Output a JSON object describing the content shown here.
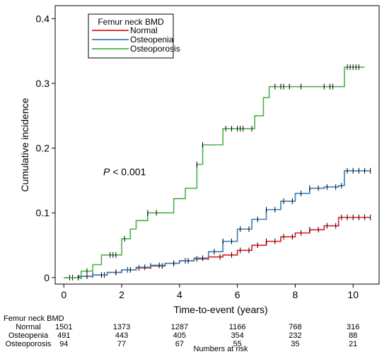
{
  "chart_data": {
    "type": "line",
    "subtype": "cumulative-incidence-step",
    "xlabel": "Time-to-event (years)",
    "ylabel": "Cumulative incidence",
    "xlim": [
      -0.3,
      10.9
    ],
    "ylim": [
      -0.01,
      0.42
    ],
    "xticks": [
      0,
      2,
      4,
      6,
      8,
      10
    ],
    "yticks": [
      0,
      0.1,
      0.2,
      0.3,
      0.4
    ],
    "ytick_labels": [
      "0",
      "0.1",
      "0.2",
      "0.3",
      "0.4"
    ],
    "grid": false,
    "legend": {
      "title": "Femur neck BMD",
      "placement": "top-left"
    },
    "annotation": {
      "p_italic": "P",
      "p_rest": " < 0.001",
      "x": 1.2,
      "y": 0.155
    },
    "series": [
      {
        "name": "Normal",
        "color": "#e41a1c",
        "points": [
          [
            0,
            0
          ],
          [
            0.5,
            0.002
          ],
          [
            1,
            0.004
          ],
          [
            1.5,
            0.008
          ],
          [
            2,
            0.012
          ],
          [
            2.5,
            0.015
          ],
          [
            3,
            0.018
          ],
          [
            3.5,
            0.022
          ],
          [
            4,
            0.026
          ],
          [
            4.5,
            0.029
          ],
          [
            5,
            0.032
          ],
          [
            5.5,
            0.035
          ],
          [
            6,
            0.042
          ],
          [
            6.5,
            0.05
          ],
          [
            7,
            0.056
          ],
          [
            7.5,
            0.063
          ],
          [
            8,
            0.069
          ],
          [
            8.5,
            0.074
          ],
          [
            9,
            0.08
          ],
          [
            9.5,
            0.093
          ],
          [
            10.6,
            0.093
          ]
        ],
        "censor_ticks": [
          0.2,
          0.6,
          1.0,
          1.4,
          1.8,
          2.2,
          2.6,
          3.0,
          3.4,
          3.8,
          4.2,
          4.6,
          5.0,
          5.4,
          5.8,
          6.1,
          6.4,
          6.7,
          7.0,
          7.3,
          7.6,
          7.9,
          8.2,
          8.5,
          8.8,
          9.1,
          9.4,
          9.6,
          9.8,
          10.0,
          10.2,
          10.4,
          10.6
        ]
      },
      {
        "name": "Osteopenia",
        "color": "#377eb8",
        "points": [
          [
            0,
            0
          ],
          [
            0.5,
            0.002
          ],
          [
            1,
            0.004
          ],
          [
            1.5,
            0.008
          ],
          [
            2,
            0.012
          ],
          [
            2.5,
            0.016
          ],
          [
            3,
            0.019
          ],
          [
            3.5,
            0.022
          ],
          [
            4,
            0.026
          ],
          [
            4.5,
            0.03
          ],
          [
            5,
            0.04
          ],
          [
            5.5,
            0.056
          ],
          [
            6,
            0.075
          ],
          [
            6.5,
            0.09
          ],
          [
            7,
            0.105
          ],
          [
            7.5,
            0.118
          ],
          [
            8,
            0.13
          ],
          [
            8.5,
            0.138
          ],
          [
            9,
            0.14
          ],
          [
            9.5,
            0.142
          ],
          [
            9.7,
            0.165
          ],
          [
            10.6,
            0.165
          ]
        ],
        "censor_ticks": [
          0.3,
          0.8,
          1.3,
          1.8,
          2.3,
          2.8,
          3.3,
          3.8,
          4.3,
          4.8,
          5.2,
          5.5,
          5.8,
          6.1,
          6.4,
          6.7,
          7.0,
          7.3,
          7.6,
          7.9,
          8.2,
          8.5,
          8.8,
          9.1,
          9.4,
          9.6,
          9.8,
          10.0,
          10.2,
          10.4,
          10.6
        ]
      },
      {
        "name": "Osteoporosis",
        "color": "#4daf4a",
        "points": [
          [
            0,
            0
          ],
          [
            0.6,
            0.01
          ],
          [
            1.0,
            0.02
          ],
          [
            1.3,
            0.035
          ],
          [
            1.7,
            0.035
          ],
          [
            2.0,
            0.06
          ],
          [
            2.3,
            0.075
          ],
          [
            2.5,
            0.088
          ],
          [
            2.9,
            0.1
          ],
          [
            3.6,
            0.1
          ],
          [
            3.8,
            0.122
          ],
          [
            4.2,
            0.138
          ],
          [
            4.6,
            0.175
          ],
          [
            4.8,
            0.205
          ],
          [
            5.3,
            0.205
          ],
          [
            5.5,
            0.23
          ],
          [
            6.3,
            0.23
          ],
          [
            6.6,
            0.25
          ],
          [
            6.9,
            0.278
          ],
          [
            7.1,
            0.295
          ],
          [
            9.6,
            0.295
          ],
          [
            9.7,
            0.325
          ],
          [
            10.4,
            0.325
          ]
        ],
        "censor_ticks": [
          0.5,
          0.8,
          1.6,
          1.7,
          1.8,
          2.1,
          2.9,
          3.2,
          4.6,
          4.8,
          5.6,
          5.8,
          6.0,
          6.1,
          6.2,
          6.5,
          7.3,
          7.5,
          7.6,
          7.8,
          8.2,
          9.0,
          9.2,
          9.3,
          9.8,
          9.9,
          10.0,
          10.1,
          10.2
        ]
      }
    ],
    "risk_table": {
      "title": "Femur neck BMD",
      "footer": "Numbers at risk",
      "times": [
        0,
        2,
        4,
        6,
        8,
        10
      ],
      "rows": [
        {
          "label": "Normal",
          "values": [
            "1501",
            "1373",
            "1287",
            "1166",
            "768",
            "316"
          ]
        },
        {
          "label": "Osteopenia",
          "values": [
            "491",
            "443",
            "405",
            "354",
            "232",
            "88"
          ]
        },
        {
          "label": "Osteoporosis",
          "values": [
            "94",
            "77",
            "67",
            "55",
            "35",
            "21"
          ]
        }
      ]
    }
  }
}
